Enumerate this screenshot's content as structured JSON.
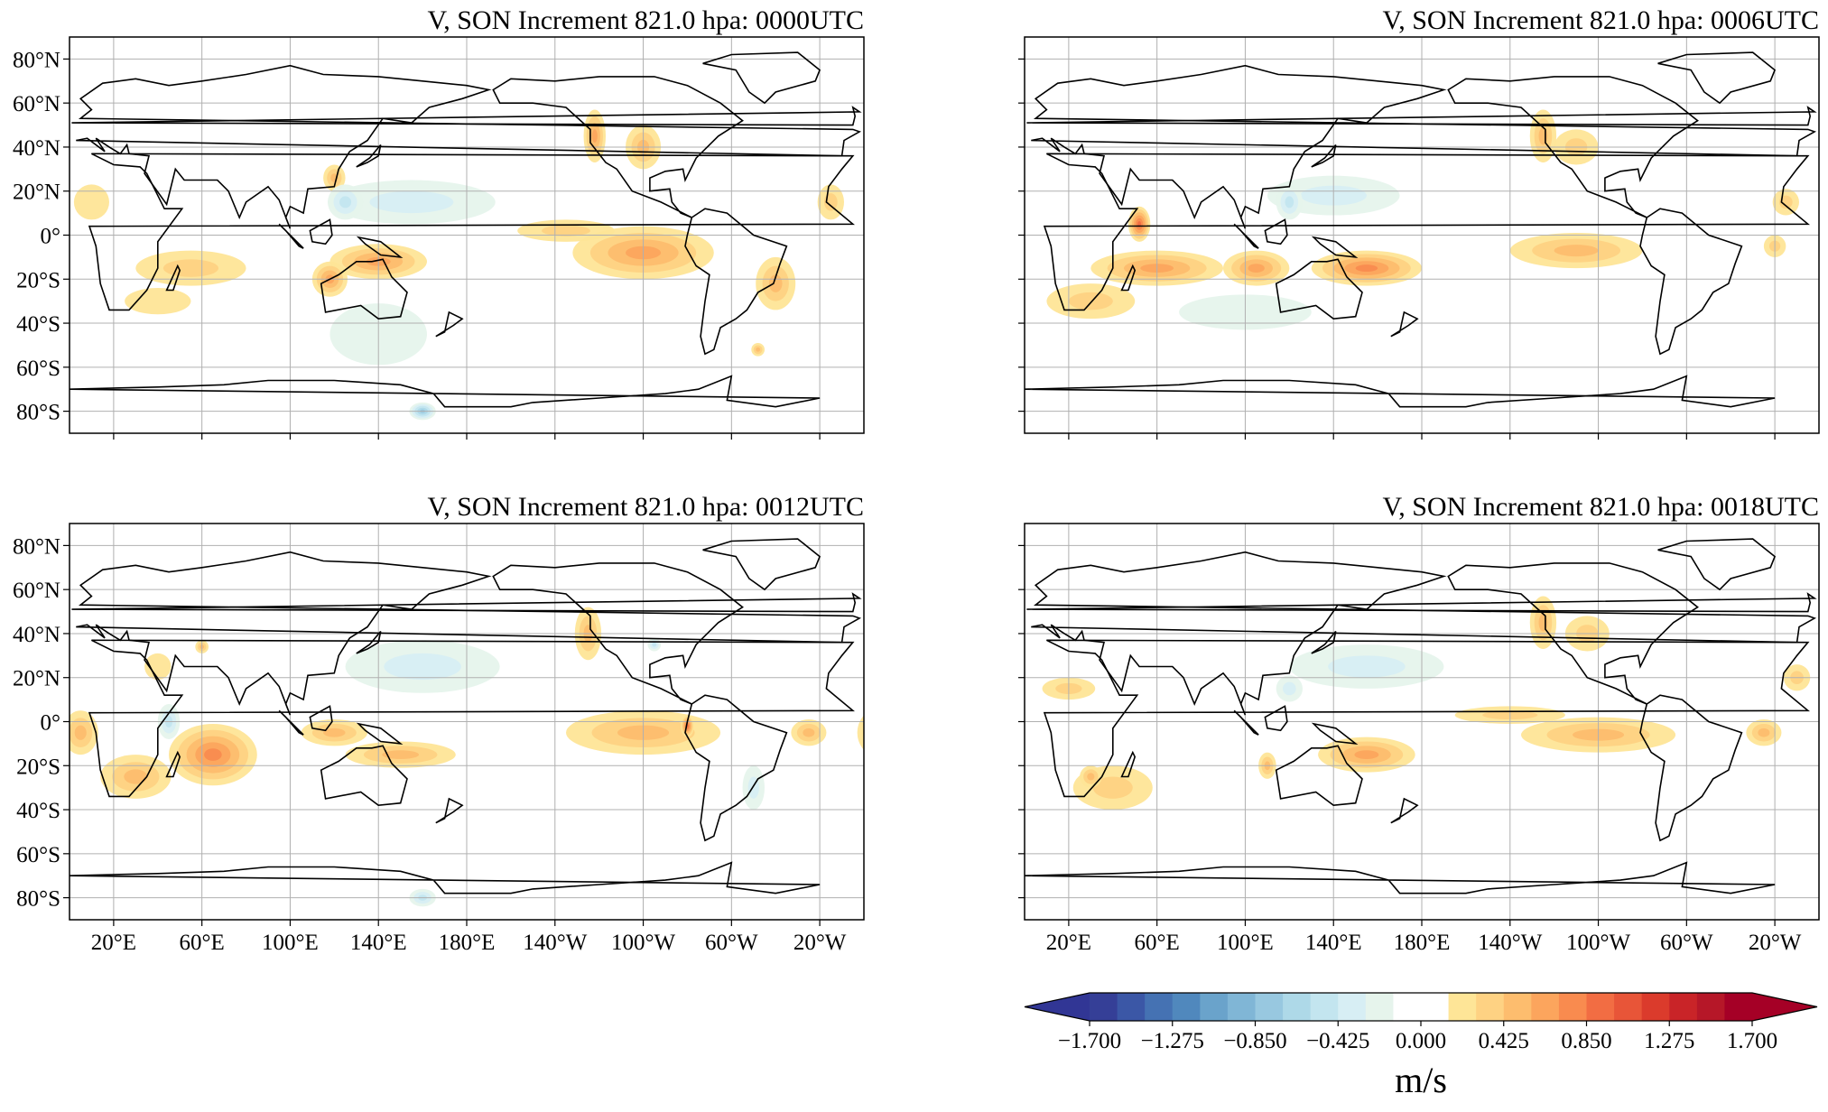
{
  "chart_data": {
    "type": "heatmap",
    "projection": "PlateCarree, central longitude 180",
    "colorbar": {
      "label": "m/s",
      "range": [
        -1.7,
        1.7
      ],
      "n_bins": 24,
      "extend": "both",
      "tick_values": [
        -1.7,
        -1.275,
        -0.85,
        -0.425,
        0.0,
        0.425,
        0.85,
        1.275,
        1.7
      ],
      "tick_labels": [
        "−1.700",
        "−1.275",
        "−0.850",
        "−0.425",
        "0.000",
        "0.425",
        "0.850",
        "1.275",
        "1.700"
      ],
      "colors": [
        "#353f97",
        "#3b57a6",
        "#4572b3",
        "#5088bd",
        "#6aa3cb",
        "#80b6d6",
        "#98c8e0",
        "#aed9e8",
        "#c3e5ef",
        "#d7eef4",
        "#e6f4ec",
        "#ffffff",
        "#ffffff",
        "#fee597",
        "#fed283",
        "#fdbd6e",
        "#fca55d",
        "#f98b4f",
        "#f26d43",
        "#e85538",
        "#db3b2c",
        "#c92428",
        "#b61728",
        "#a50026"
      ],
      "extend_low_color": "#313695",
      "extend_high_color": "#a50026"
    },
    "lon_ticks": [
      20,
      60,
      100,
      140,
      180,
      220,
      260,
      300,
      340
    ],
    "lon_tick_labels": [
      "20°E",
      "60°E",
      "100°E",
      "140°E",
      "180°E",
      "140°W",
      "100°W",
      "60°W",
      "20°W"
    ],
    "lat_ticks": [
      80,
      60,
      40,
      20,
      0,
      -20,
      -40,
      -60,
      -80
    ],
    "lat_tick_labels": [
      "80°N",
      "60°N",
      "40°N",
      "20°N",
      "0°",
      "20°S",
      "40°S",
      "60°S",
      "80°S"
    ],
    "xlim": [
      0,
      360
    ],
    "ylim": [
      -90,
      90
    ],
    "grid": true,
    "panels": [
      {
        "title": "V, SON Increment 821.0 hpa: 0000UTC",
        "features": [
          [
            -100,
            -8,
            32,
            12,
            0.65
          ],
          [
            -135,
            2,
            22,
            5,
            0.35
          ],
          [
            55,
            -15,
            25,
            8,
            0.45
          ],
          [
            140,
            -12,
            22,
            8,
            0.75
          ],
          [
            118,
            -20,
            8,
            8,
            0.65
          ],
          [
            120,
            26,
            5,
            6,
            0.6
          ],
          [
            155,
            15,
            38,
            10,
            -0.4
          ],
          [
            125,
            15,
            8,
            8,
            -0.6
          ],
          [
            140,
            -45,
            22,
            14,
            -0.3
          ],
          [
            -40,
            -22,
            9,
            12,
            0.55
          ],
          [
            -122,
            45,
            5,
            12,
            0.65
          ],
          [
            -100,
            40,
            8,
            10,
            0.5
          ],
          [
            160,
            -80,
            6,
            4,
            -0.8
          ],
          [
            40,
            -30,
            15,
            6,
            0.3
          ],
          [
            10,
            15,
            8,
            8,
            0.3
          ],
          [
            -15,
            15,
            6,
            8,
            0.35
          ],
          [
            -48,
            -52,
            3,
            3,
            0.6
          ]
        ]
      },
      {
        "title": "V, SON Increment 821.0 hpa: 0006UTC",
        "features": [
          [
            60,
            -15,
            30,
            8,
            0.75
          ],
          [
            52,
            5,
            5,
            8,
            1.0
          ],
          [
            105,
            -15,
            15,
            8,
            0.7
          ],
          [
            155,
            -15,
            25,
            8,
            0.8
          ],
          [
            -110,
            -7,
            30,
            8,
            0.55
          ],
          [
            140,
            18,
            30,
            9,
            -0.45
          ],
          [
            120,
            15,
            6,
            8,
            -0.6
          ],
          [
            100,
            -35,
            30,
            8,
            -0.3
          ],
          [
            30,
            -30,
            20,
            8,
            0.35
          ],
          [
            -125,
            45,
            6,
            12,
            0.6
          ],
          [
            -110,
            40,
            10,
            8,
            0.35
          ],
          [
            -15,
            15,
            6,
            6,
            0.4
          ],
          [
            -20,
            -5,
            5,
            5,
            0.4
          ]
        ]
      },
      {
        "title": "V, SON Increment 821.0 hpa: 0012UTC",
        "features": [
          [
            65,
            -15,
            20,
            14,
            0.8
          ],
          [
            30,
            -25,
            16,
            10,
            0.5
          ],
          [
            5,
            -5,
            8,
            10,
            0.5
          ],
          [
            -100,
            -5,
            35,
            10,
            0.55
          ],
          [
            -80,
            -2,
            3,
            5,
            1.0
          ],
          [
            -25,
            -5,
            8,
            6,
            0.6
          ],
          [
            150,
            -15,
            25,
            6,
            0.55
          ],
          [
            120,
            -5,
            15,
            6,
            0.6
          ],
          [
            160,
            25,
            35,
            12,
            -0.35
          ],
          [
            45,
            0,
            5,
            8,
            -0.5
          ],
          [
            -125,
            40,
            6,
            12,
            0.5
          ],
          [
            -95,
            35,
            3,
            3,
            -0.6
          ],
          [
            -50,
            -30,
            5,
            10,
            -0.4
          ],
          [
            160,
            -80,
            6,
            4,
            -0.6
          ],
          [
            60,
            34,
            3,
            3,
            0.55
          ],
          [
            40,
            25,
            6,
            6,
            0.3
          ]
        ]
      },
      {
        "title": "V, SON Increment 821.0 hpa: 0018UTC",
        "features": [
          [
            -100,
            -6,
            35,
            8,
            0.6
          ],
          [
            -140,
            3,
            25,
            4,
            0.35
          ],
          [
            155,
            -15,
            22,
            8,
            0.7
          ],
          [
            110,
            -20,
            4,
            6,
            0.6
          ],
          [
            40,
            -30,
            18,
            10,
            0.45
          ],
          [
            30,
            -25,
            5,
            5,
            0.55
          ],
          [
            155,
            25,
            35,
            10,
            -0.35
          ],
          [
            120,
            15,
            6,
            6,
            -0.45
          ],
          [
            -125,
            45,
            6,
            12,
            0.6
          ],
          [
            -105,
            40,
            10,
            8,
            0.45
          ],
          [
            -25,
            -5,
            8,
            6,
            0.5
          ],
          [
            20,
            15,
            12,
            5,
            0.35
          ],
          [
            -10,
            20,
            6,
            6,
            0.35
          ]
        ]
      }
    ]
  }
}
